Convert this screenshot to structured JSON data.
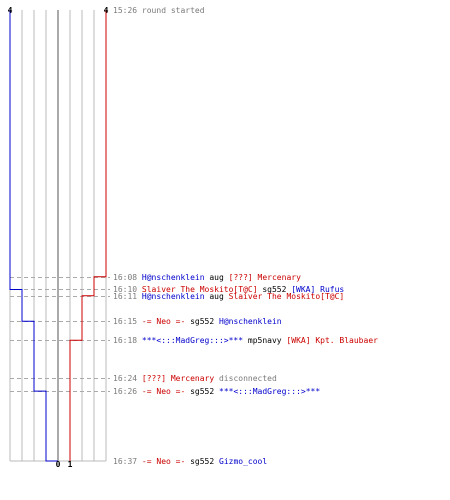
{
  "scores": {
    "blue_start": "4",
    "red_start": "4",
    "blue_end": "0",
    "red_end": "1"
  },
  "colors": {
    "blue": "#0000cc",
    "red": "#cc0000",
    "gray_text": "#7a7a7a",
    "grid": "#bbbbbb",
    "dash": "#aaaaaa",
    "black": "#000000"
  },
  "chart_data": {
    "type": "line",
    "series": [
      {
        "color": "blue",
        "points": [
          {
            "time": "15:26",
            "score": 4
          },
          {
            "time": "16:10",
            "score": 4
          },
          {
            "time": "16:10",
            "score": 3
          },
          {
            "time": "16:15",
            "score": 3
          },
          {
            "time": "16:15",
            "score": 2
          },
          {
            "time": "16:26",
            "score": 2
          },
          {
            "time": "16:26",
            "score": 1
          },
          {
            "time": "16:37",
            "score": 1
          },
          {
            "time": "16:37",
            "score": 0
          }
        ]
      },
      {
        "color": "red",
        "points": [
          {
            "time": "15:26",
            "score": 4
          },
          {
            "time": "16:08",
            "score": 4
          },
          {
            "time": "16:08",
            "score": 3
          },
          {
            "time": "16:11",
            "score": 3
          },
          {
            "time": "16:11",
            "score": 2
          },
          {
            "time": "16:18",
            "score": 2
          },
          {
            "time": "16:18",
            "score": 1
          },
          {
            "time": "16:37",
            "score": 1
          }
        ]
      }
    ]
  },
  "log": [
    {
      "time": "15:26",
      "parts": [
        {
          "text": "round started",
          "color": "gray"
        }
      ],
      "tick": false
    },
    {
      "time": "16:08",
      "parts": [
        {
          "text": "H@nschenklein",
          "color": "blue"
        },
        {
          "text": " aug ",
          "color": "black"
        },
        {
          "text": "[???] Mercenary",
          "color": "red"
        }
      ],
      "tick": true
    },
    {
      "time": "16:10",
      "parts": [
        {
          "text": "Slaiver The Moskito[T@C]",
          "color": "red"
        },
        {
          "text": " sg552 ",
          "color": "black"
        },
        {
          "text": "[WKA] Rufus",
          "color": "blue"
        }
      ],
      "tick": true
    },
    {
      "time": "16:11",
      "parts": [
        {
          "text": "H@nschenklein",
          "color": "blue"
        },
        {
          "text": " aug ",
          "color": "black"
        },
        {
          "text": "Slaiver The Moskito[T@C]",
          "color": "red"
        }
      ],
      "tick": true
    },
    {
      "time": "16:15",
      "parts": [
        {
          "text": "-= Neo =-",
          "color": "red"
        },
        {
          "text": " sg552 ",
          "color": "black"
        },
        {
          "text": "H@nschenklein",
          "color": "blue"
        }
      ],
      "tick": true
    },
    {
      "time": "16:18",
      "parts": [
        {
          "text": "***<:::MadGreg:::>***",
          "color": "blue"
        },
        {
          "text": " mp5navy ",
          "color": "black"
        },
        {
          "text": "[WKA] Kpt. Blaubaer",
          "color": "red"
        }
      ],
      "tick": true
    },
    {
      "time": "16:24",
      "parts": [
        {
          "text": "[???] Mercenary",
          "color": "red"
        },
        {
          "text": " disconnected",
          "color": "gray"
        }
      ],
      "tick": true
    },
    {
      "time": "16:26",
      "parts": [
        {
          "text": "-= Neo =-",
          "color": "red"
        },
        {
          "text": " sg552 ",
          "color": "black"
        },
        {
          "text": "***<:::MadGreg:::>***",
          "color": "blue"
        }
      ],
      "tick": true
    },
    {
      "time": "16:37",
      "parts": [
        {
          "text": "-= Neo =-",
          "color": "red"
        },
        {
          "text": " sg552 ",
          "color": "black"
        },
        {
          "text": "Gizmo_cool",
          "color": "blue"
        }
      ],
      "tick": false
    }
  ]
}
